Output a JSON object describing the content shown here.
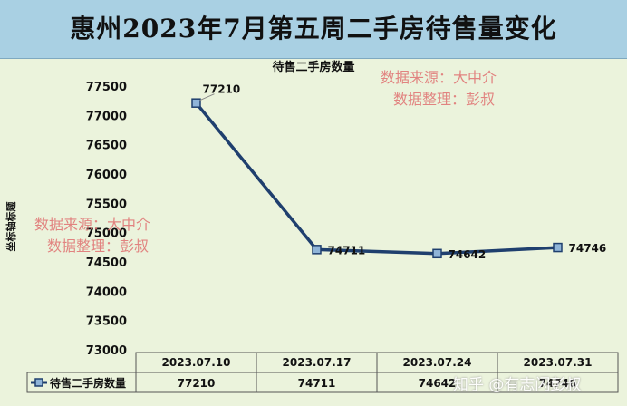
{
  "banner": {
    "title": "惠州2023年7月第五周二手房待售量变化"
  },
  "watermarks": {
    "source_line": "数据来源：大中介",
    "editor_line": "数据整理：彭叔",
    "platform": "知乎 @有志闪彭叔"
  },
  "chart_data": {
    "type": "line",
    "title": "待售二手房数量",
    "ylabel": "坐标轴标题",
    "xlabel": "",
    "categories": [
      "2023.07.10",
      "2023.07.17",
      "2023.07.24",
      "2023.07.31"
    ],
    "series": [
      {
        "name": "待售二手房数量",
        "values": [
          77210,
          74711,
          74642,
          74746
        ]
      }
    ],
    "y_ticks": [
      "73000",
      "73500",
      "74000",
      "74500",
      "75000",
      "75500",
      "76000",
      "76500",
      "77000",
      "77500"
    ],
    "ylim": [
      73000,
      77700
    ],
    "grid": false,
    "legend": "data-table-left",
    "data_table": true,
    "colors": {
      "series": "#1f3f6e",
      "marker_fill": "#8fb4d8"
    }
  }
}
